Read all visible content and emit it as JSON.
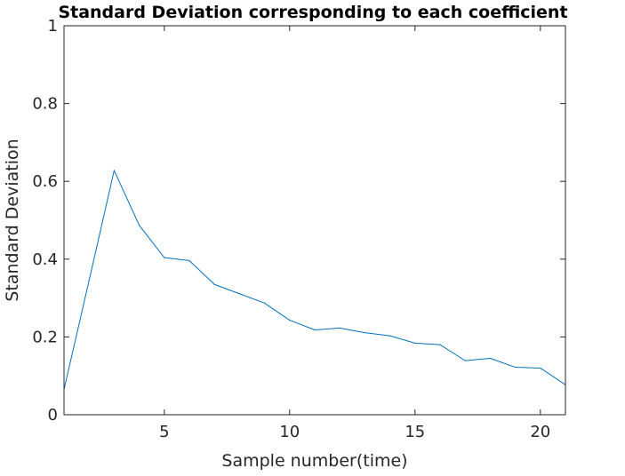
{
  "chart_data": {
    "type": "line",
    "title": "Standard Deviation corresponding to each coefficient",
    "xlabel": "Sample number(time)",
    "ylabel": "Standard Deviation",
    "xlim": [
      1,
      21
    ],
    "ylim": [
      0,
      1
    ],
    "xticks": [
      5,
      10,
      15,
      20
    ],
    "yticks": [
      0,
      0.2,
      0.4,
      0.6,
      0.8,
      1
    ],
    "xtick_labels": [
      "5",
      "10",
      "15",
      "20"
    ],
    "ytick_labels": [
      "0",
      "0.2",
      "0.4",
      "0.6",
      "0.8",
      "1"
    ],
    "grid": false,
    "legend": "none",
    "series": [
      {
        "color": "#0072BD",
        "x": [
          1,
          2,
          3,
          4,
          5,
          6,
          7,
          8,
          9,
          10,
          11,
          12,
          13,
          14,
          15,
          16,
          17,
          18,
          19,
          20,
          21
        ],
        "y": [
          0.065,
          0.345,
          0.628,
          0.487,
          0.404,
          0.396,
          0.335,
          0.311,
          0.287,
          0.243,
          0.218,
          0.223,
          0.211,
          0.203,
          0.184,
          0.18,
          0.139,
          0.145,
          0.122,
          0.12,
          0.077
        ]
      }
    ]
  }
}
